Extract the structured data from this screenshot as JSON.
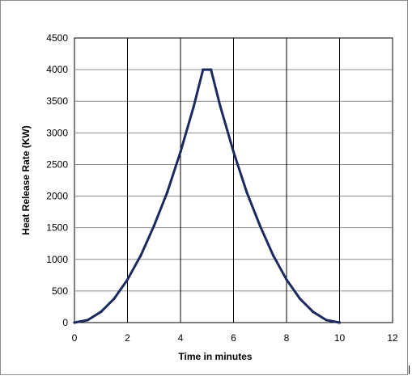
{
  "chart_data": {
    "type": "line",
    "title": "",
    "xlabel": "Time in minutes",
    "ylabel": "Heat Release Rate (KW)",
    "xlim": [
      0,
      12
    ],
    "ylim": [
      0,
      4500
    ],
    "x_ticks": [
      0,
      2,
      4,
      6,
      8,
      10,
      12
    ],
    "y_ticks": [
      0,
      500,
      1000,
      1500,
      2000,
      2500,
      3000,
      3500,
      4000,
      4500
    ],
    "grid": true,
    "legend": "none",
    "series": [
      {
        "color": "#1b2a5e",
        "x": [
          0,
          0.5,
          1,
          1.5,
          2,
          2.5,
          3,
          3.5,
          4,
          4.5,
          4.85,
          5.15,
          5.5,
          6,
          6.5,
          7,
          7.5,
          8,
          8.5,
          9,
          9.5,
          10
        ],
        "y": [
          0,
          40,
          170,
          380,
          680,
          1060,
          1530,
          2060,
          2700,
          3420,
          4000,
          4000,
          3420,
          2700,
          2060,
          1530,
          1060,
          680,
          380,
          170,
          40,
          0
        ]
      }
    ]
  }
}
